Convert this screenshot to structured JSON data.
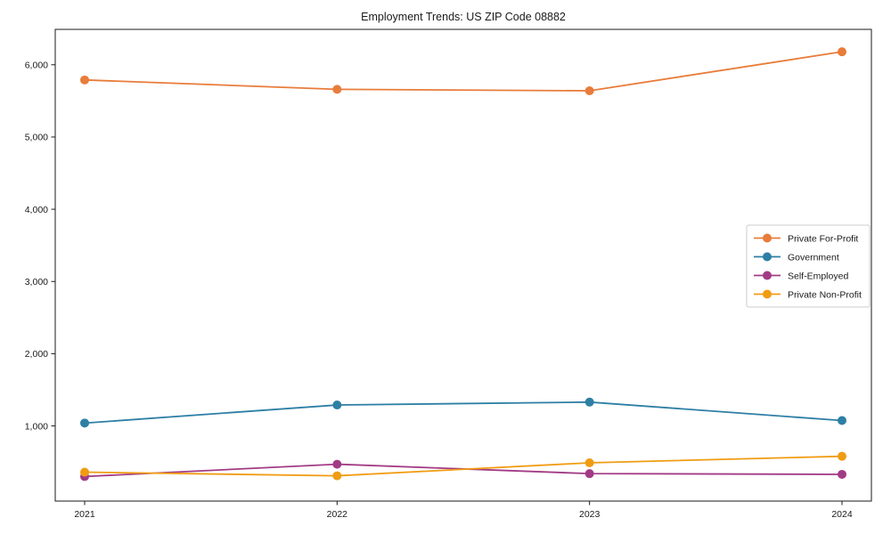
{
  "figure": {
    "title": "Employment Trends: US ZIP Code 08882"
  },
  "chart_data": {
    "type": "line",
    "title": "Employment Trends: US ZIP Code 08882",
    "xlabel": "",
    "ylabel": "",
    "x": [
      2021,
      2022,
      2023,
      2024
    ],
    "x_tick_labels": [
      "2021",
      "2022",
      "2023",
      "2024"
    ],
    "series": [
      {
        "name": "Private For-Profit",
        "color": "#E87C3B",
        "values": [
          5790,
          5660,
          5640,
          6180
        ]
      },
      {
        "name": "Government",
        "color": "#2E7FA5",
        "values": [
          1040,
          1290,
          1330,
          1075
        ]
      },
      {
        "name": "Self-Employed",
        "color": "#A23B85",
        "values": [
          300,
          470,
          340,
          330
        ]
      },
      {
        "name": "Private Non-Profit",
        "color": "#F09C13",
        "values": [
          360,
          310,
          490,
          580
        ]
      }
    ],
    "ylim": [
      -40,
      6490
    ],
    "yticks": [
      1000,
      2000,
      3000,
      4000,
      5000,
      6000
    ],
    "ytick_labels": [
      "1,000",
      "2,000",
      "3,000",
      "4,000",
      "5,000",
      "6,000"
    ],
    "grid": false,
    "marker": "circle",
    "legend_position": "center-right",
    "frame_color": "#1a1a1a",
    "legend_border_color": "#cccccc"
  }
}
